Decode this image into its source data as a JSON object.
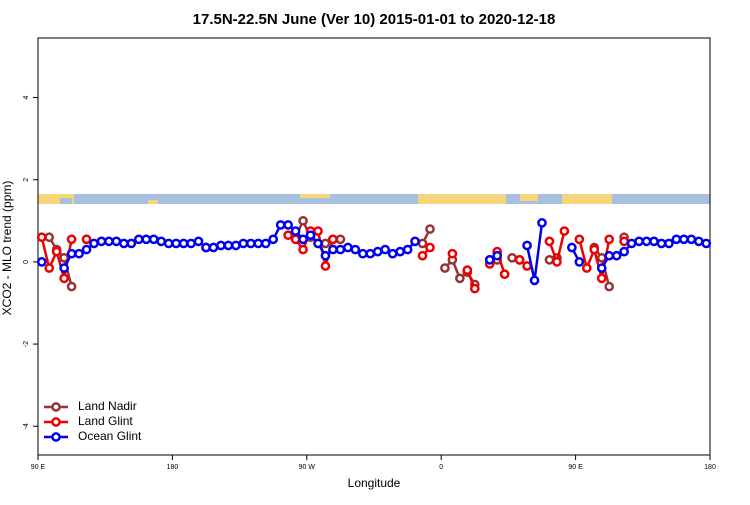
{
  "chart_data": {
    "type": "line",
    "title": "17.5N-22.5N June (Ver 10)   2015-01-01 to 2020-12-18",
    "xlabel": "Longitude",
    "ylabel": "XCO2 - MLO trend (ppm)",
    "x": [
      92.5,
      97.5,
      102.5,
      107.5,
      112.5,
      117.5,
      122.5,
      127.5,
      132.5,
      137.5,
      142.5,
      147.5,
      152.5,
      157.5,
      162.5,
      167.5,
      172.5,
      177.5,
      182.5,
      187.5,
      192.5,
      197.5,
      202.5,
      207.5,
      212.5,
      217.5,
      222.5,
      227.5,
      232.5,
      237.5,
      242.5,
      247.5,
      252.5,
      257.5,
      262.5,
      267.5,
      272.5,
      277.5,
      282.5,
      287.5,
      292.5,
      297.5,
      302.5,
      307.5,
      312.5,
      317.5,
      322.5,
      327.5,
      332.5,
      337.5,
      342.5,
      347.5,
      352.5,
      357.5,
      362.5,
      367.5,
      372.5,
      377.5,
      382.5,
      387.5,
      392.5,
      397.5,
      402.5,
      407.5,
      412.5,
      417.5,
      422.5,
      427.5,
      432.5,
      437.5,
      442.5,
      447.5,
      452.5,
      457.5,
      462.5,
      467.5,
      472.5,
      477.5,
      482.5,
      487.5,
      492.5,
      497.5,
      502.5,
      507.5,
      512.5,
      517.5,
      522.5,
      527.5,
      532.5,
      537.5
    ],
    "series": [
      {
        "name": "Land Nadir",
        "color": "#993333",
        "values": [
          null,
          0.6,
          0.3,
          0.1,
          -0.6,
          null,
          0.55,
          null,
          null,
          null,
          null,
          null,
          null,
          null,
          null,
          null,
          null,
          null,
          null,
          null,
          null,
          null,
          null,
          null,
          null,
          null,
          null,
          null,
          null,
          null,
          null,
          null,
          null,
          null,
          0.6,
          1.0,
          0.6,
          null,
          0.45,
          0.55,
          0.55,
          null,
          null,
          null,
          null,
          null,
          null,
          null,
          null,
          null,
          null,
          0.45,
          0.8,
          null,
          -0.15,
          0.05,
          -0.4,
          -0.25,
          -0.55,
          null,
          0.05,
          0.05,
          null,
          0.1,
          0.05,
          null,
          null,
          null,
          0.05,
          0.1,
          null,
          null,
          null,
          null,
          0.35,
          0.1,
          -0.6,
          null,
          0.6,
          null,
          null,
          null,
          null,
          null,
          null,
          null,
          null,
          null,
          null,
          null
        ]
      },
      {
        "name": "Land Glint",
        "color": "#ee0000",
        "values": [
          0.6,
          -0.15,
          0.25,
          -0.4,
          0.55,
          null,
          0.55,
          null,
          null,
          null,
          null,
          null,
          null,
          null,
          null,
          null,
          null,
          null,
          null,
          null,
          null,
          null,
          0.35,
          null,
          null,
          null,
          null,
          null,
          null,
          null,
          null,
          null,
          null,
          0.65,
          0.55,
          0.3,
          0.75,
          0.75,
          -0.1,
          0.55,
          null,
          null,
          null,
          null,
          null,
          null,
          null,
          null,
          null,
          null,
          null,
          0.15,
          0.35,
          null,
          null,
          0.2,
          null,
          -0.2,
          -0.65,
          null,
          -0.05,
          0.25,
          -0.3,
          null,
          0.05,
          -0.1,
          null,
          null,
          0.5,
          0,
          0.75,
          null,
          0.55,
          -0.15,
          0.3,
          -0.4,
          0.55,
          null,
          0.5,
          null,
          null,
          null,
          null,
          null,
          null,
          null,
          null,
          null,
          null,
          null
        ]
      },
      {
        "name": "Ocean Glint",
        "color": "#0000ee",
        "values": [
          0,
          null,
          null,
          -0.15,
          0.2,
          0.2,
          0.3,
          0.45,
          0.5,
          0.5,
          0.5,
          0.45,
          0.45,
          0.55,
          0.55,
          0.55,
          0.5,
          0.45,
          0.45,
          0.45,
          0.45,
          0.5,
          0.35,
          0.35,
          0.4,
          0.4,
          0.4,
          0.45,
          0.45,
          0.45,
          0.45,
          0.55,
          0.9,
          0.9,
          0.75,
          0.55,
          0.65,
          0.45,
          0.15,
          0.3,
          0.3,
          0.35,
          0.3,
          0.2,
          0.2,
          0.25,
          0.3,
          0.2,
          0.25,
          0.3,
          0.5,
          null,
          null,
          null,
          null,
          null,
          null,
          null,
          null,
          null,
          0.05,
          0.15,
          null,
          null,
          null,
          0.4,
          -0.45,
          0.95,
          null,
          null,
          null,
          0.35,
          0,
          null,
          null,
          -0.15,
          0.15,
          0.15,
          0.25,
          0.45,
          0.5,
          0.5,
          0.5,
          0.45,
          0.45,
          0.55,
          0.55,
          0.55,
          0.5,
          0.45
        ]
      }
    ],
    "xlim": [
      90,
      540
    ],
    "xticks": [
      {
        "value": 90,
        "label": "90 E"
      },
      180,
      {
        "value": 270,
        "label": "90 W"
      },
      {
        "value": 360,
        "label": "0"
      },
      {
        "value": 450,
        "label": "90 E"
      },
      {
        "value": 540,
        "label": "180"
      }
    ],
    "ylim": [
      -4.7,
      5.45
    ],
    "yticks": [
      -4,
      -2,
      0,
      2,
      4
    ],
    "legend": "bottom-left"
  }
}
